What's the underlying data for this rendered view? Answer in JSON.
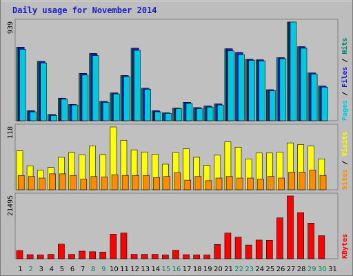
{
  "chart_data": {
    "type": "bar",
    "title": "Daily usage for November 2014",
    "categories": [
      "1",
      "2",
      "3",
      "4",
      "5",
      "6",
      "7",
      "8",
      "9",
      "10",
      "11",
      "12",
      "13",
      "14",
      "15",
      "16",
      "17",
      "18",
      "19",
      "20",
      "21",
      "22",
      "23",
      "24",
      "25",
      "26",
      "27",
      "28",
      "29",
      "30",
      "31"
    ],
    "weekend_days": [
      "2",
      "8",
      "9",
      "15",
      "16",
      "22",
      "23",
      "29",
      "30"
    ],
    "panels": [
      {
        "id": "top",
        "max_label": "939",
        "ymax": 939,
        "legend": [
          {
            "text": "Pages",
            "color": "#00c8e0"
          },
          {
            "text": "Files",
            "color": "#1a1acc"
          },
          {
            "text": "Hits",
            "color": "#00806a"
          }
        ],
        "series": [
          {
            "name": "Hits",
            "color": "#00806a",
            "values": [
              700,
              95,
              565,
              60,
              215,
              155,
              450,
              640,
              185,
              265,
              430,
              690,
              310,
              95,
              75,
              120,
              175,
              125,
              140,
              160,
              685,
              650,
              585,
              580,
              295,
              600,
              939,
              705,
              455,
              330,
              0
            ]
          },
          {
            "name": "Files",
            "color": "#1a1acc",
            "values": [
              700,
              95,
              565,
              60,
              215,
              155,
              450,
              640,
              185,
              265,
              430,
              690,
              310,
              95,
              75,
              120,
              175,
              125,
              140,
              160,
              685,
              650,
              585,
              580,
              295,
              600,
              939,
              705,
              455,
              330,
              0
            ]
          },
          {
            "name": "Pages",
            "color": "#00c8e0",
            "values": [
              680,
              85,
              550,
              50,
              205,
              150,
              435,
              620,
              175,
              255,
              420,
              670,
              300,
              85,
              70,
              115,
              165,
              115,
              130,
              150,
              665,
              630,
              575,
              570,
              285,
              590,
              939,
              690,
              445,
              320,
              0
            ]
          }
        ]
      },
      {
        "id": "middle",
        "max_label": "118",
        "ymax": 118,
        "legend": [
          {
            "text": "Sites",
            "color": "#ff8c00"
          },
          {
            "text": "Visits",
            "color": "#ffff00"
          }
        ],
        "series": [
          {
            "name": "Visits",
            "color": "#ffff00",
            "values": [
              73,
              45,
              37,
              42,
              61,
              70,
              66,
              82,
              66,
              118,
              93,
              75,
              71,
              67,
              48,
              70,
              77,
              61,
              46,
              65,
              90,
              80,
              58,
              69,
              69,
              71,
              88,
              85,
              82,
              58,
              0
            ]
          },
          {
            "name": "Sites",
            "color": "#ff8c00",
            "values": [
              27,
              25,
              22,
              30,
              30,
              27,
              20,
              25,
              24,
              28,
              27,
              27,
              27,
              23,
              25,
              32,
              18,
              25,
              17,
              22,
              25,
              22,
              22,
              20,
              25,
              22,
              33,
              33,
              37,
              27,
              0
            ]
          }
        ]
      },
      {
        "id": "bottom",
        "max_label": "21495",
        "ymax": 21495,
        "legend": [
          {
            "text": "KBytes",
            "color": "#ff0000"
          }
        ],
        "series": [
          {
            "name": "KBytes",
            "color": "#ff0000",
            "values": [
              2800,
              1400,
              1300,
              1500,
              5000,
              1500,
              2600,
              2400,
              2300,
              8400,
              8800,
              1500,
              1500,
              1500,
              1300,
              2900,
              1400,
              1300,
              1300,
              4900,
              8800,
              7400,
              4700,
              6400,
              6300,
              14000,
              21495,
              15800,
              12200,
              7900,
              0
            ]
          }
        ]
      }
    ]
  }
}
